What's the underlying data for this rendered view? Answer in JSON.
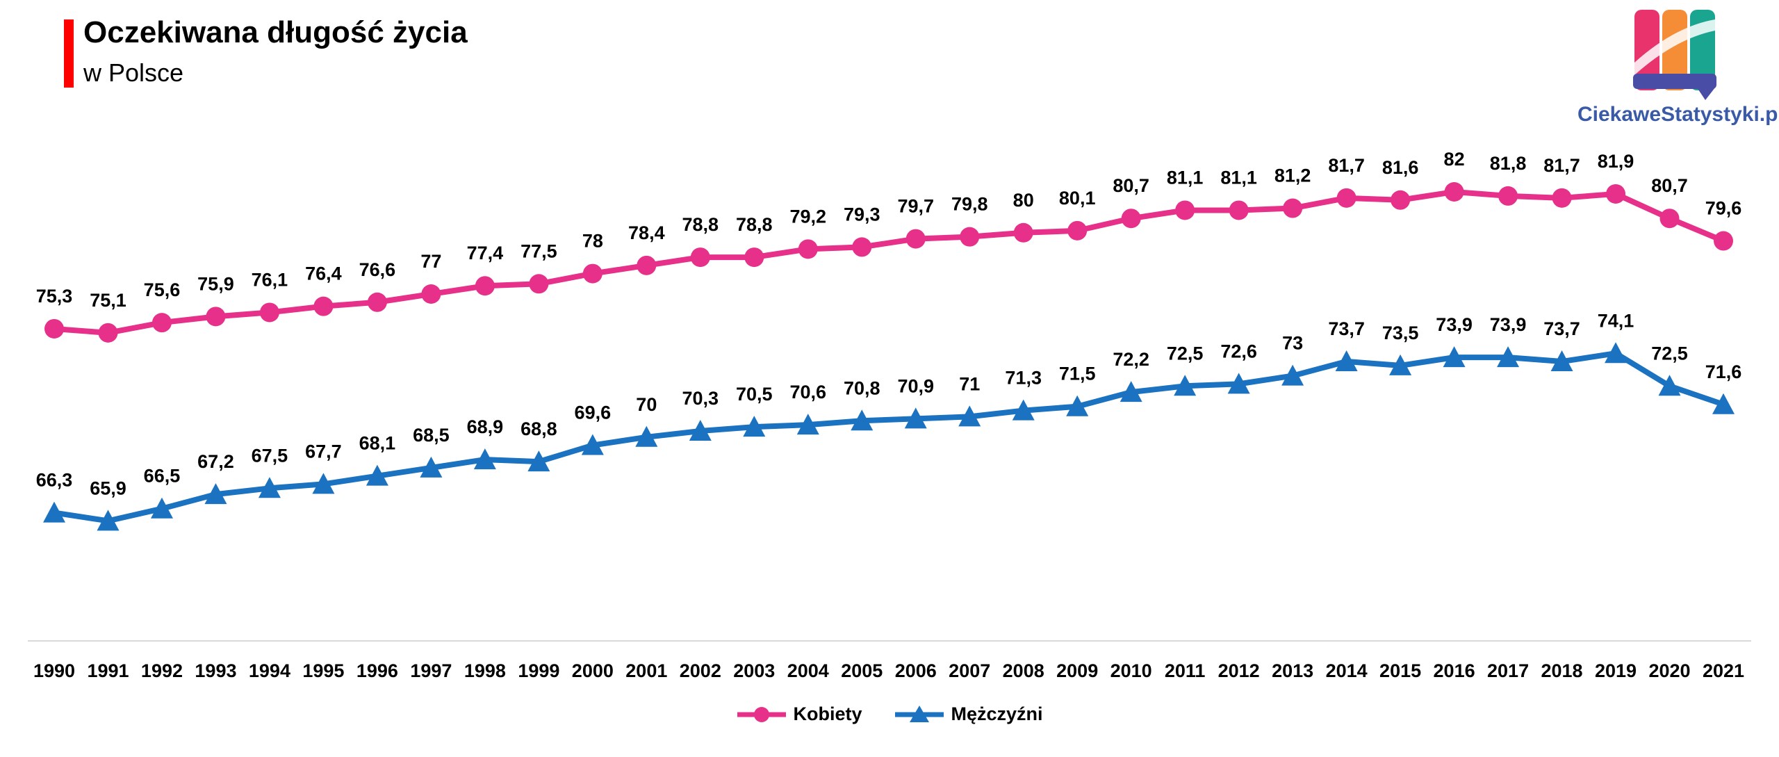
{
  "title": "Oczekiwana długość życia",
  "subtitle": "w Polsce",
  "logo": {
    "text": "CiekaweStatystyki.pl",
    "colors": [
      "#e8336d",
      "#f58c36",
      "#1aa591",
      "#4a4da6"
    ]
  },
  "chart_data": {
    "type": "line",
    "x": [
      "1990",
      "1991",
      "1992",
      "1993",
      "1994",
      "1995",
      "1996",
      "1997",
      "1998",
      "1999",
      "2000",
      "2001",
      "2002",
      "2003",
      "2004",
      "2005",
      "2006",
      "2007",
      "2008",
      "2009",
      "2010",
      "2011",
      "2012",
      "2013",
      "2014",
      "2015",
      "2016",
      "2017",
      "2018",
      "2019",
      "2020",
      "2021"
    ],
    "series": [
      {
        "name": "Kobiety",
        "color": "#e6308a",
        "marker": "circle",
        "values": [
          75.3,
          75.1,
          75.6,
          75.9,
          76.1,
          76.4,
          76.6,
          77,
          77.4,
          77.5,
          78,
          78.4,
          78.8,
          78.8,
          79.2,
          79.3,
          79.7,
          79.8,
          80,
          80.1,
          80.7,
          81.1,
          81.1,
          81.2,
          81.7,
          81.6,
          82,
          81.8,
          81.7,
          81.9,
          80.7,
          79.6
        ],
        "labels": [
          "75,3",
          "75,1",
          "75,6",
          "75,9",
          "76,1",
          "76,4",
          "76,6",
          "77",
          "77,4",
          "77,5",
          "78",
          "78,4",
          "78,8",
          "78,8",
          "79,2",
          "79,3",
          "79,7",
          "79,8",
          "80",
          "80,1",
          "80,7",
          "81,1",
          "81,1",
          "81,2",
          "81,7",
          "81,6",
          "82",
          "81,8",
          "81,7",
          "81,9",
          "80,7",
          "79,6"
        ]
      },
      {
        "name": "Mężczyźni",
        "color": "#1a72c0",
        "marker": "triangle",
        "values": [
          66.3,
          65.9,
          66.5,
          67.2,
          67.5,
          67.7,
          68.1,
          68.5,
          68.9,
          68.8,
          69.6,
          70,
          70.3,
          70.5,
          70.6,
          70.8,
          70.9,
          71,
          71.3,
          71.5,
          72.2,
          72.5,
          72.6,
          73,
          73.7,
          73.5,
          73.9,
          73.9,
          73.7,
          74.1,
          72.5,
          71.6
        ],
        "labels": [
          "66,3",
          "65,9",
          "66,5",
          "67,2",
          "67,5",
          "67,7",
          "68,1",
          "68,5",
          "68,9",
          "68,8",
          "69,6",
          "70",
          "70,3",
          "70,5",
          "70,6",
          "70,8",
          "70,9",
          "71",
          "71,3",
          "71,5",
          "72,2",
          "72,5",
          "72,6",
          "73",
          "73,7",
          "73,5",
          "73,9",
          "73,9",
          "73,7",
          "74,1",
          "72,5",
          "71,6"
        ]
      }
    ],
    "ylim": [
      60,
      84
    ],
    "grid": false,
    "legend_position": "bottom-center",
    "axis_color": "#d9d9d9"
  }
}
